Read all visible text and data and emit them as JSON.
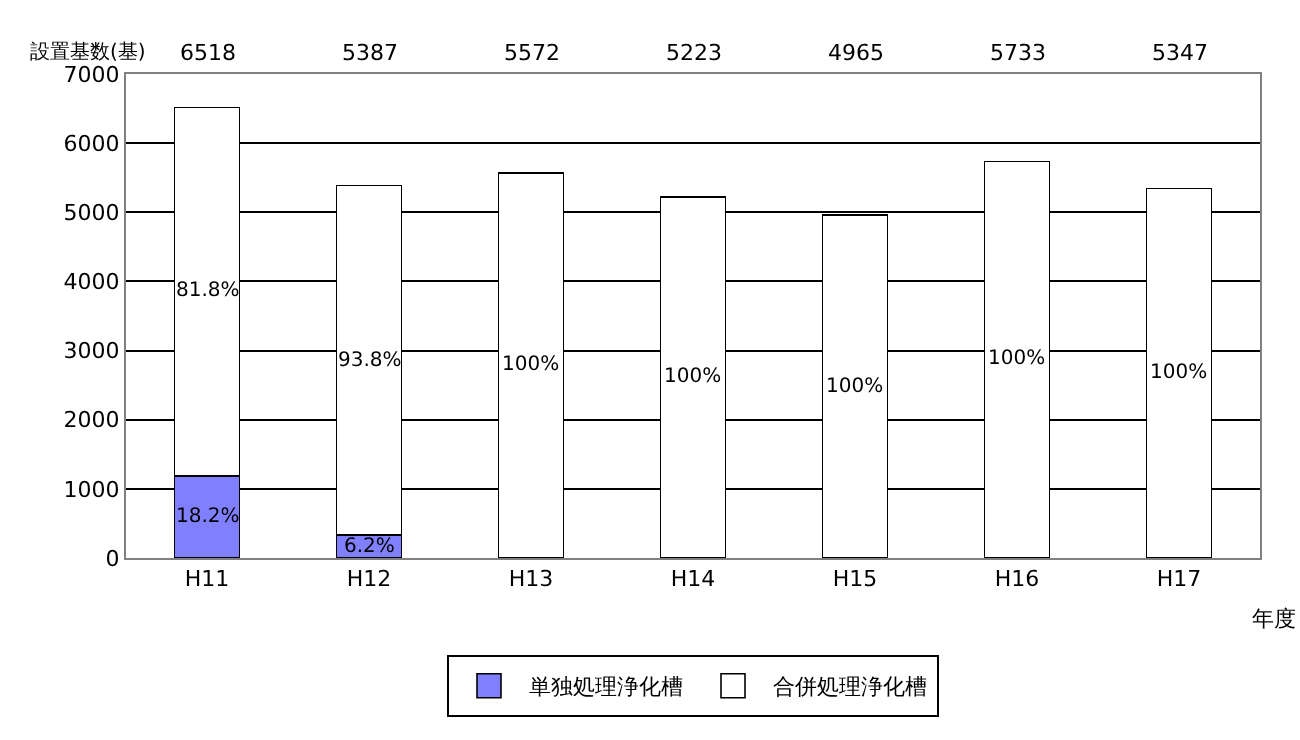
{
  "chart_data": {
    "type": "bar",
    "stacked": true,
    "ylabel": "設置基数(基)",
    "xlabel": "年度",
    "categories": [
      "H11",
      "H12",
      "H13",
      "H14",
      "H15",
      "H16",
      "H17"
    ],
    "series": [
      {
        "name": "単独処理浄化槽",
        "color": "#8080ff",
        "values": [
          1186,
          334,
          0,
          0,
          0,
          0,
          0
        ]
      },
      {
        "name": "合併処理浄化槽",
        "color": "#ffffff",
        "values": [
          5332,
          5053,
          5572,
          5223,
          4965,
          5733,
          5347
        ]
      }
    ],
    "annotations": [
      "18.2%",
      "81.8%",
      "6.2%",
      "93.8%",
      "100%",
      "100%",
      "100%",
      "100%",
      "100%",
      "6518",
      "5387",
      "5572",
      "5223",
      "4965",
      "5733",
      "5347"
    ],
    "ylim": [
      0,
      7000
    ],
    "yticks": [
      0,
      1000,
      2000,
      3000,
      4000,
      5000,
      6000,
      7000
    ],
    "grid": "y",
    "legend": "bottom"
  }
}
